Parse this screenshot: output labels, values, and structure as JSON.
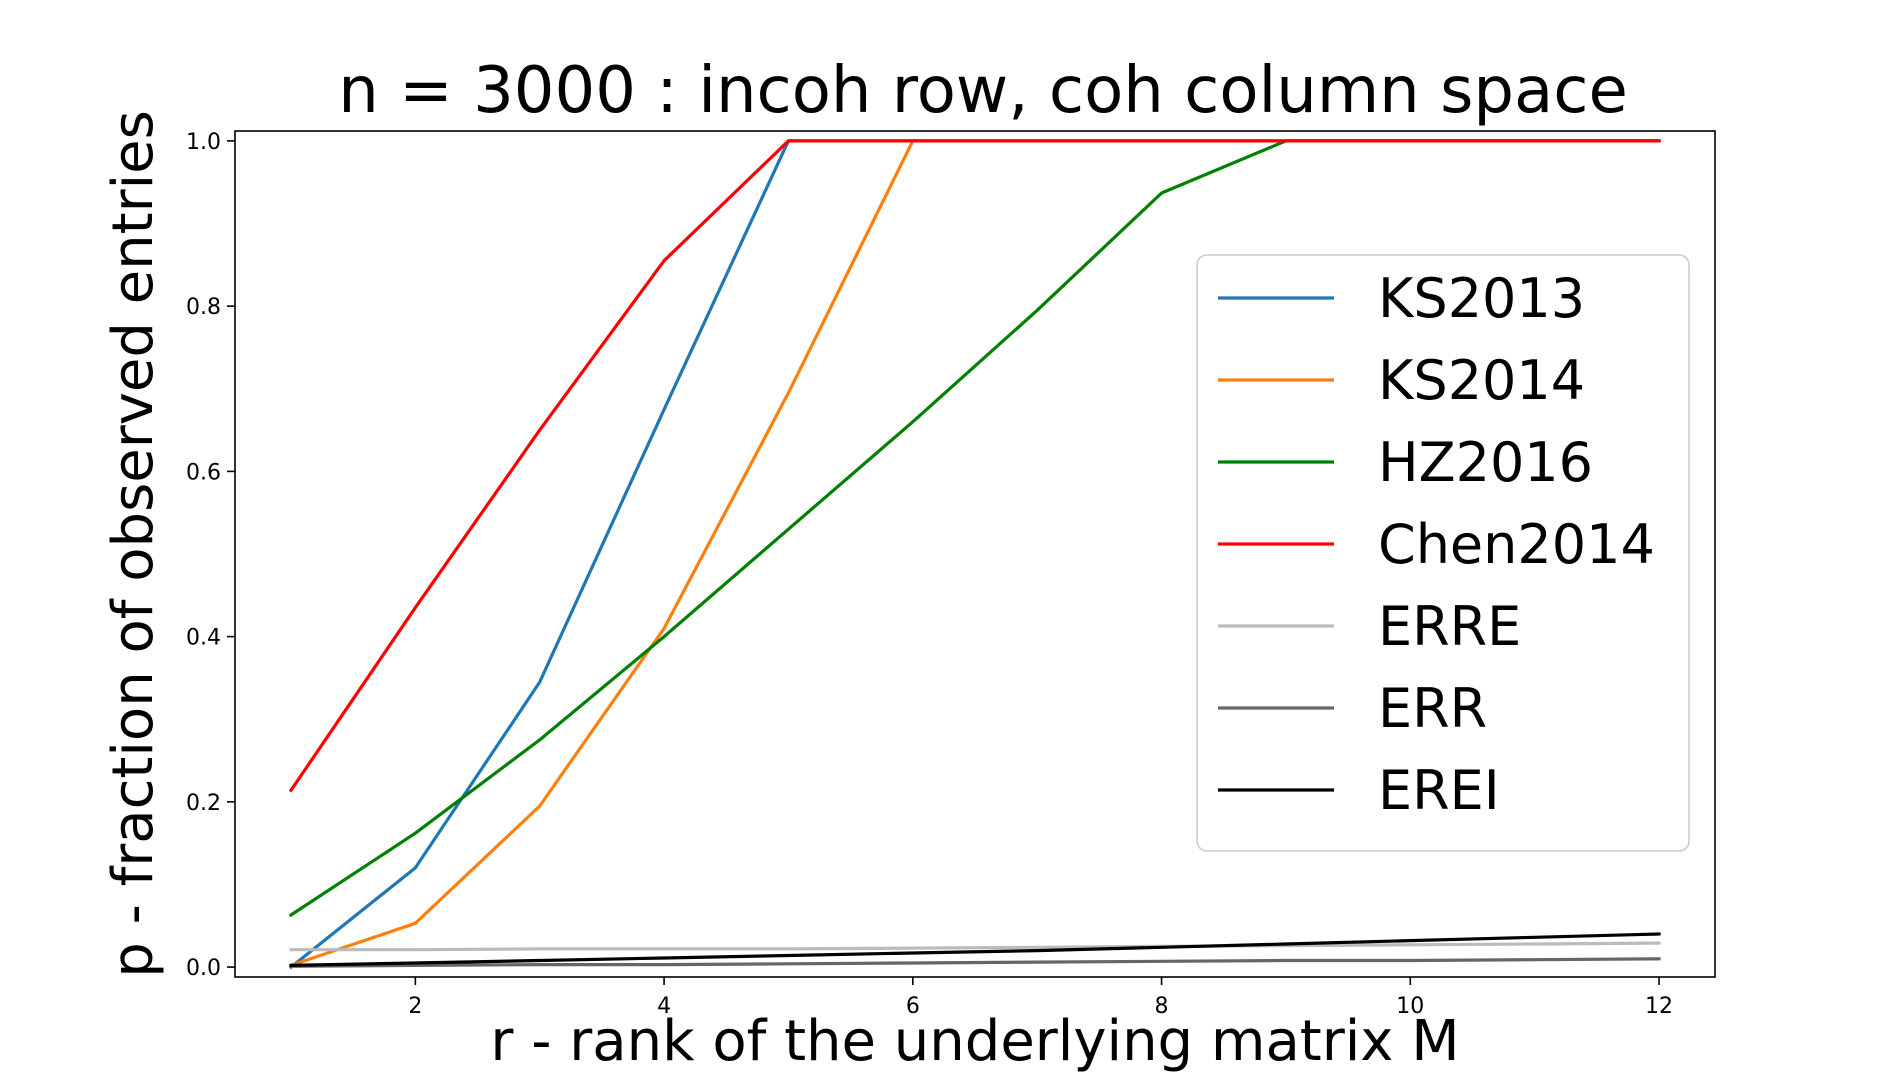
{
  "chart_data": {
    "type": "line",
    "title": "n = 3000 : incoh row, coh column space",
    "xlabel": "r - rank of the underlying matrix M",
    "ylabel": "p - fraction of observed entries",
    "xlim": [
      0.55,
      12.45
    ],
    "ylim": [
      -0.012,
      1.012
    ],
    "xticks": [
      2,
      4,
      6,
      8,
      10,
      12
    ],
    "yticks": [
      0.0,
      0.2,
      0.4,
      0.6,
      0.8,
      1.0
    ],
    "xtick_labels": [
      "2",
      "4",
      "6",
      "8",
      "10",
      "12"
    ],
    "ytick_labels": [
      "0.0",
      "0.2",
      "0.4",
      "0.6",
      "0.8",
      "1.0"
    ],
    "grid": false,
    "legend_position": "right",
    "x": [
      1,
      2,
      3,
      4,
      5,
      6,
      7,
      8,
      9,
      10,
      11,
      12
    ],
    "series": [
      {
        "name": "KS2013",
        "color": "#1f77b4",
        "values": [
          0.0,
          0.12,
          0.345,
          0.675,
          1.0,
          1.0,
          1.0,
          1.0,
          1.0,
          1.0,
          1.0,
          1.0
        ]
      },
      {
        "name": "KS2014",
        "color": "#ff7f0e",
        "values": [
          0.002,
          0.053,
          0.195,
          0.41,
          0.695,
          1.0,
          1.0,
          1.0,
          1.0,
          1.0,
          1.0,
          1.0
        ]
      },
      {
        "name": "HZ2016",
        "color": "#008000",
        "values": [
          0.063,
          0.162,
          0.275,
          0.4,
          0.53,
          0.66,
          0.795,
          0.937,
          1.0,
          1.0,
          1.0,
          1.0
        ]
      },
      {
        "name": "Chen2014",
        "color": "#ff0000",
        "values": [
          0.214,
          0.435,
          0.65,
          0.855,
          1.0,
          1.0,
          1.0,
          1.0,
          1.0,
          1.0,
          1.0,
          1.0
        ]
      },
      {
        "name": "ERRE",
        "color": "#bbbbbb",
        "values": [
          0.021,
          0.021,
          0.022,
          0.022,
          0.022,
          0.023,
          0.024,
          0.025,
          0.026,
          0.027,
          0.028,
          0.029
        ]
      },
      {
        "name": "ERR",
        "color": "#666666",
        "values": [
          0.001,
          0.002,
          0.003,
          0.003,
          0.004,
          0.005,
          0.006,
          0.007,
          0.008,
          0.008,
          0.009,
          0.01
        ]
      },
      {
        "name": "EREI",
        "color": "#000000",
        "values": [
          0.002,
          0.005,
          0.008,
          0.011,
          0.014,
          0.017,
          0.02,
          0.024,
          0.028,
          0.032,
          0.036,
          0.04
        ]
      }
    ]
  }
}
